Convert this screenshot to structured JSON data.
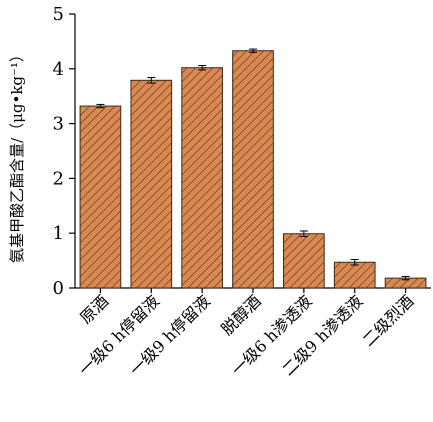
{
  "chart_data": {
    "type": "bar",
    "ylabel": "氨基甲酸乙酯含量/（μg•kg⁻¹）",
    "xlabel": "",
    "ylim": [
      0,
      5
    ],
    "yticks": [
      "0",
      "1",
      "2",
      "3",
      "4",
      "5"
    ],
    "categories": [
      "原酒",
      "一级6 h停留液",
      "一级9 h停留液",
      "脱醇酒",
      "一级6 h渗透液",
      "二级9 h渗透液",
      "二级烈酒"
    ],
    "values": [
      3.32,
      3.79,
      4.02,
      4.33,
      0.99,
      0.47,
      0.18
    ],
    "errors": [
      0.03,
      0.05,
      0.04,
      0.03,
      0.05,
      0.05,
      0.03
    ],
    "bar_color": "#d98a52",
    "hatch": "diagonal",
    "grid": false,
    "legend": "none"
  }
}
